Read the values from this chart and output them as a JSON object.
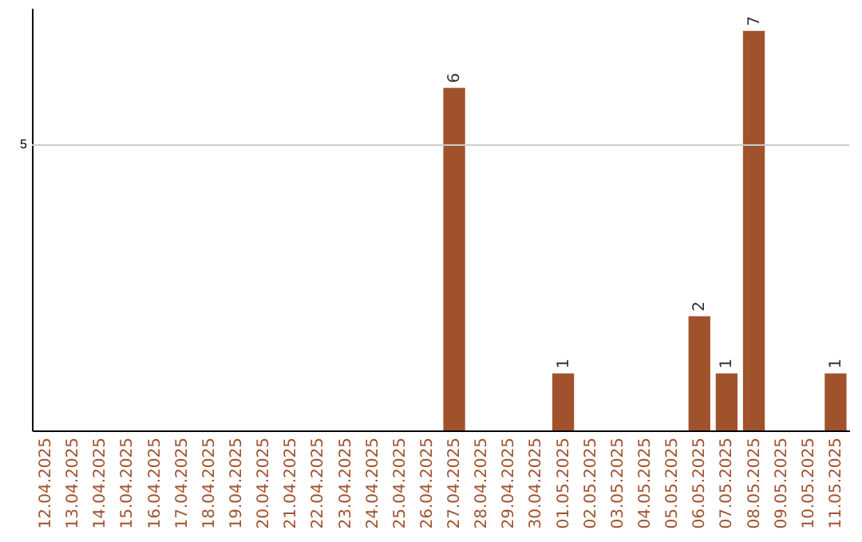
{
  "chart_data": {
    "type": "bar",
    "categories": [
      "12.04.2025",
      "13.04.2025",
      "14.04.2025",
      "15.04.2025",
      "16.04.2025",
      "17.04.2025",
      "18.04.2025",
      "19.04.2025",
      "20.04.2025",
      "21.04.2025",
      "22.04.2025",
      "23.04.2025",
      "24.04.2025",
      "25.04.2025",
      "26.04.2025",
      "27.04.2025",
      "28.04.2025",
      "29.04.2025",
      "30.04.2025",
      "01.05.2025",
      "02.05.2025",
      "03.05.2025",
      "04.05.2025",
      "05.05.2025",
      "06.05.2025",
      "07.05.2025",
      "08.05.2025",
      "09.05.2025",
      "10.05.2025",
      "11.05.2025"
    ],
    "values": [
      null,
      null,
      null,
      null,
      null,
      null,
      null,
      null,
      null,
      null,
      null,
      null,
      null,
      null,
      null,
      6,
      null,
      null,
      null,
      1,
      null,
      null,
      null,
      null,
      2,
      1,
      7,
      null,
      null,
      1
    ],
    "value_labels": [
      null,
      null,
      null,
      null,
      null,
      null,
      null,
      null,
      null,
      null,
      null,
      null,
      null,
      null,
      null,
      "6",
      null,
      null,
      null,
      "1",
      null,
      null,
      null,
      null,
      "2",
      "1",
      "7",
      null,
      null,
      "1"
    ],
    "color": "#a0522d",
    "ylim": [
      0,
      7.4
    ],
    "ref_lines": [
      {
        "axis": "y",
        "value": 5,
        "label": "5",
        "color": "#cccccc"
      }
    ]
  }
}
